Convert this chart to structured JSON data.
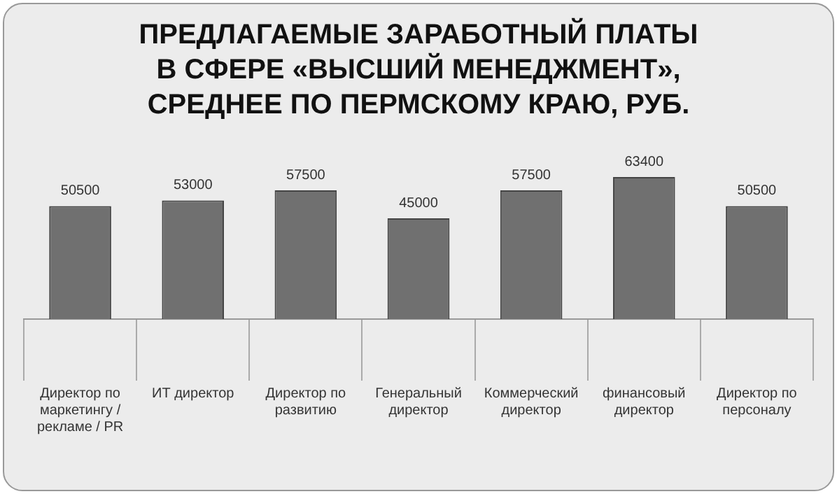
{
  "chart_data": {
    "type": "bar",
    "title": "ПРЕДЛАГАЕМЫЕ ЗАРАБОТНЫЙ ПЛАТЫ\nВ СФЕРЕ «ВЫСШИЙ МЕНЕДЖМЕНТ»,\nСРЕДНЕЕ ПО ПЕРМСКОМУ КРАЮ, РУБ.",
    "categories": [
      "Директор по маркетингу / рекламе / PR",
      "ИТ директор",
      "Директор по развитию",
      "Генеральный директор",
      "Коммерческий директор",
      "финансовый директор",
      "Директор по персоналу"
    ],
    "values": [
      50500,
      53000,
      57500,
      45000,
      57500,
      63400,
      50500
    ],
    "color": "#707070",
    "data_labels": true,
    "grid": false,
    "legend": false
  }
}
